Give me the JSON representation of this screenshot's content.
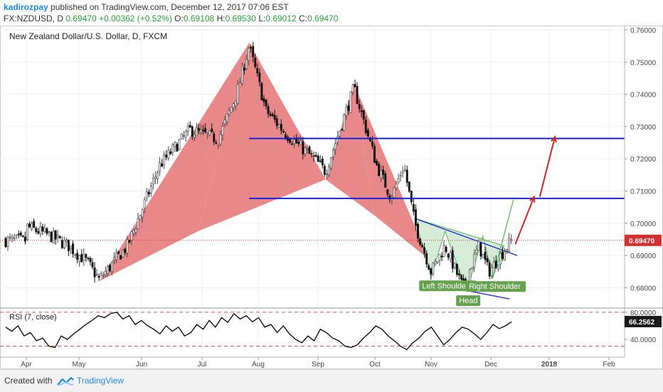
{
  "header": {
    "username": "kadirozpay",
    "published_text": "published on TradingView.com, December 12, 2017 07:06 EST",
    "symbol": "FX:NZDUSD, D",
    "last": "0.69470",
    "change": "+0.00362 (+0.52%)",
    "o_label": "O:",
    "o_value": "0.69108",
    "h_label": "H:",
    "h_value": "0.69530",
    "l_label": "L:",
    "l_value": "0.69012",
    "c_label": "C:",
    "c_value": "0.69470"
  },
  "footer": {
    "made_with": "Created with",
    "brand": "TradingView"
  },
  "colors": {
    "up": "#4a4a4a",
    "down": "#111111",
    "bat": "#e57373",
    "level": "#1a22d8",
    "hs_fill": "#c8e6c9",
    "hs_line": "#66bb6a",
    "arrow": "#c62828",
    "label_bg": "#66a14e"
  },
  "chart_data": [
    {
      "type": "candlestick",
      "title": "New Zealand Dollar/U.S. Dollar, D, FXCM",
      "xlabel": "",
      "ylabel": "",
      "x_tick_labels": [
        "Apr",
        "May",
        "Jun",
        "Jul",
        "Aug",
        "Sep",
        "Oct",
        "Nov",
        "Dec",
        "2018",
        "Feb"
      ],
      "y_tick_labels": [
        "0.76000",
        "0.75000",
        "0.74000",
        "0.73000",
        "0.72000",
        "0.71000",
        "0.70000",
        "0.69000",
        "0.68000"
      ],
      "ylim": [
        0.6755,
        0.7608
      ],
      "last_price": "0.69470",
      "horizontal_levels": [
        0.7263,
        0.7077
      ],
      "path_points": [
        {
          "x": "2017-04-01",
          "close": 0.699
        },
        {
          "x": "2017-04-15",
          "close": 0.696
        },
        {
          "x": "2017-04-25",
          "close": 0.693
        },
        {
          "x": "2017-05-05",
          "close": 0.688
        },
        {
          "x": "2017-05-11",
          "close": 0.6825
        },
        {
          "x": "2017-05-25",
          "close": 0.693
        },
        {
          "x": "2017-06-10",
          "close": 0.718
        },
        {
          "x": "2017-06-25",
          "close": 0.729
        },
        {
          "x": "2017-07-10",
          "close": 0.726
        },
        {
          "x": "2017-07-20",
          "close": 0.74
        },
        {
          "x": "2017-07-27",
          "close": 0.755
        },
        {
          "x": "2017-08-05",
          "close": 0.735
        },
        {
          "x": "2017-08-15",
          "close": 0.728
        },
        {
          "x": "2017-08-30",
          "close": 0.72
        },
        {
          "x": "2017-09-05",
          "close": 0.716
        },
        {
          "x": "2017-09-20",
          "close": 0.742
        },
        {
          "x": "2017-10-02",
          "close": 0.718
        },
        {
          "x": "2017-10-10",
          "close": 0.708
        },
        {
          "x": "2017-10-17",
          "close": 0.718
        },
        {
          "x": "2017-10-23",
          "close": 0.7
        },
        {
          "x": "2017-11-01",
          "close": 0.685
        },
        {
          "x": "2017-11-08",
          "close": 0.693
        },
        {
          "x": "2017-11-17",
          "close": 0.68
        },
        {
          "x": "2017-11-25",
          "close": 0.693
        },
        {
          "x": "2017-11-30",
          "close": 0.685
        },
        {
          "x": "2017-12-12",
          "close": 0.6947
        }
      ],
      "annotations": [
        {
          "text": "Left Shoulder"
        },
        {
          "text": "Head"
        },
        {
          "text": "Right Shoulder"
        }
      ]
    },
    {
      "type": "line",
      "title": "RSI (7, close)",
      "y_tick_labels": [
        "80.0000",
        "40.0000"
      ],
      "ylim": [
        17,
        82
      ],
      "last_value": "66.2562",
      "bands": [
        80,
        30
      ],
      "series": [
        {
          "name": "RSI (7, close)",
          "values": [
            58,
            52,
            60,
            45,
            50,
            38,
            42,
            30,
            28,
            45,
            40,
            48,
            55,
            62,
            68,
            75,
            72,
            78,
            80,
            70,
            75,
            62,
            68,
            60,
            55,
            48,
            60,
            52,
            58,
            45,
            50,
            62,
            55,
            68,
            58,
            72,
            65,
            78,
            70,
            75,
            66,
            72,
            58,
            62,
            50,
            60,
            48,
            40,
            35,
            45,
            38,
            55,
            50,
            42,
            38,
            30,
            28,
            32,
            42,
            50,
            60,
            55,
            45,
            38,
            30,
            25,
            35,
            42,
            52,
            58,
            45,
            32,
            40,
            50,
            58,
            55,
            48,
            40,
            50,
            62,
            56,
            60,
            66
          ]
        }
      ]
    }
  ]
}
